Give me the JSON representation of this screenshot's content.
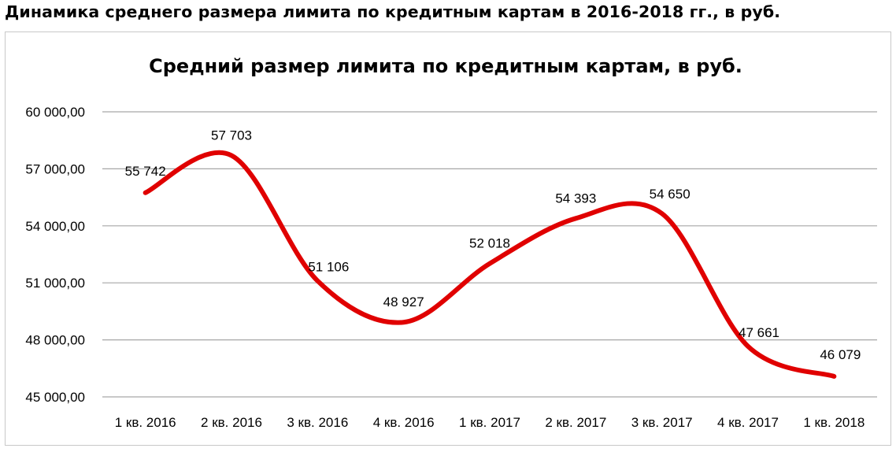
{
  "page": {
    "title": "Динамика среднего размера лимита по кредитным картам в 2016-2018 гг., в руб."
  },
  "chart_data": {
    "type": "line",
    "title": "Средний размер лимита по кредитным картам, в руб.",
    "xlabel": "",
    "ylabel": "",
    "categories": [
      "1 кв. 2016",
      "2 кв. 2016",
      "3 кв. 2016",
      "4 кв. 2016",
      "1 кв. 2017",
      "2 кв. 2017",
      "3 кв. 2017",
      "4 кв. 2017",
      "1 кв. 2018"
    ],
    "series": [
      {
        "values": [
          55742,
          57703,
          51106,
          48927,
          52018,
          54393,
          54650,
          47661,
          46079
        ],
        "data_labels": [
          "55 742",
          "57 703",
          "51 106",
          "48 927",
          "52 018",
          "54 393",
          "54 650",
          "47 661",
          "46 079"
        ],
        "color": "#e00000",
        "smooth": true
      }
    ],
    "ylim": [
      45000,
      60000
    ],
    "y_ticks": [
      45000,
      48000,
      51000,
      54000,
      57000,
      60000
    ],
    "y_tick_labels": [
      "45 000,00",
      "48 000,00",
      "51 000,00",
      "54 000,00",
      "57 000,00",
      "60 000,00"
    ],
    "grid": true,
    "legend": "none",
    "gridline_color": "#a6a6a6"
  }
}
